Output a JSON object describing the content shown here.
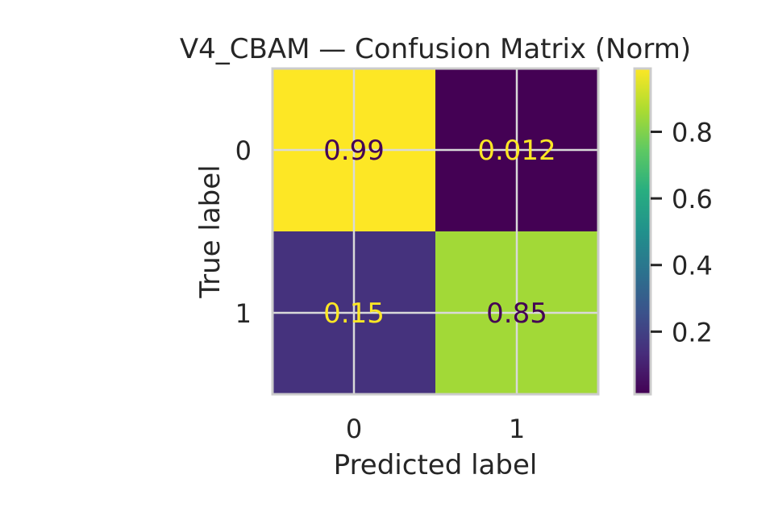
{
  "chart_data": {
    "type": "heatmap",
    "title": "V4_CBAM — Confusion Matrix (Norm)",
    "xlabel": "Predicted label",
    "ylabel": "True label",
    "x_categories": [
      "0",
      "1"
    ],
    "y_categories": [
      "0",
      "1"
    ],
    "values": [
      [
        0.99,
        0.012
      ],
      [
        0.15,
        0.85
      ]
    ],
    "value_labels": [
      [
        "0.99",
        "0.012"
      ],
      [
        "0.15",
        "0.85"
      ]
    ],
    "colormap": "viridis",
    "colorbar": {
      "range": [
        0.012,
        0.99
      ],
      "ticks": [
        0.2,
        0.4,
        0.6,
        0.8
      ],
      "tick_labels": [
        "0.2",
        "0.4",
        "0.6",
        "0.8"
      ]
    },
    "grid": true
  },
  "colors": {
    "cell_dark_text": "#440154",
    "cell_light_text": "#fde725",
    "grid": "#d9d9d9",
    "frame": "#cccccc",
    "text": "#262626"
  }
}
